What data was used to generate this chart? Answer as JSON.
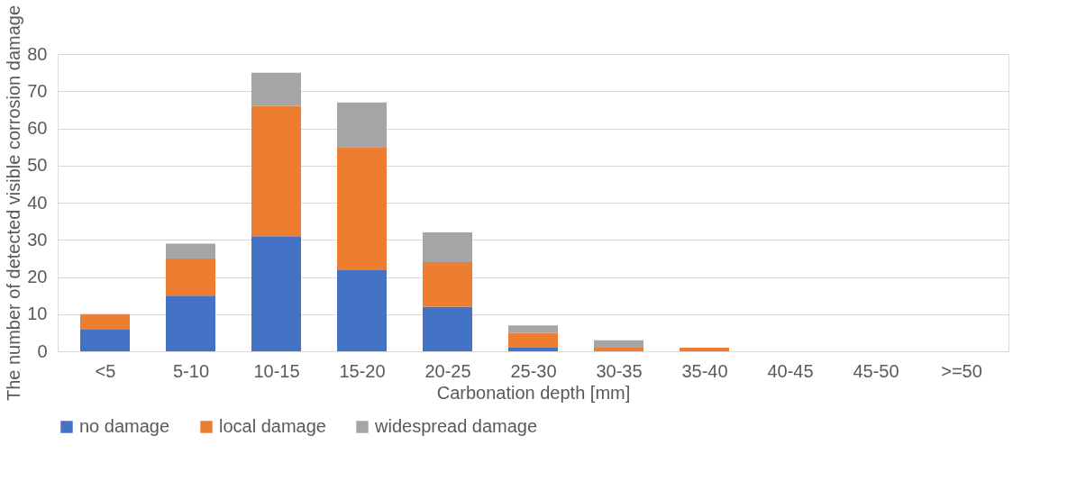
{
  "chart_data": {
    "type": "bar",
    "stacked": true,
    "xlabel": "Carbonation depth [mm]",
    "ylabel": "The number of detected visible corrosion damage",
    "categories": [
      "<5",
      "5-10",
      "10-15",
      "15-20",
      "20-25",
      "25-30",
      "30-35",
      "35-40",
      "40-45",
      "45-50",
      ">=50"
    ],
    "series": [
      {
        "name": "no damage",
        "color": "#4472c4",
        "values": [
          6,
          15,
          31,
          22,
          12,
          1,
          0,
          0,
          0,
          0,
          0
        ]
      },
      {
        "name": "local damage",
        "color": "#ed7d31",
        "values": [
          4,
          10,
          35,
          33,
          12,
          4,
          1,
          1,
          0,
          0,
          0
        ]
      },
      {
        "name": "widespread damage",
        "color": "#a5a5a5",
        "values": [
          0,
          4,
          9,
          12,
          8,
          2,
          2,
          0,
          0,
          0,
          0
        ]
      }
    ],
    "ylim": [
      0,
      80
    ],
    "yticks": [
      0,
      10,
      20,
      30,
      40,
      50,
      60,
      70,
      80
    ],
    "grid": "y",
    "legend": "bottom"
  }
}
